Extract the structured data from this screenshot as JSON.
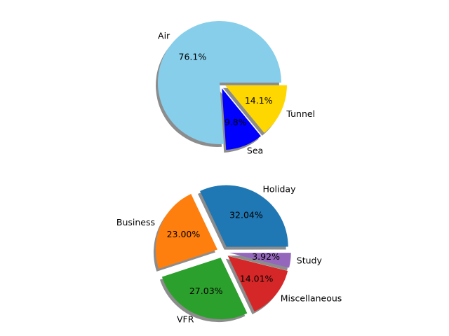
{
  "chart_data": [
    {
      "type": "pie",
      "exploded": [
        false,
        true,
        true
      ],
      "shadow": true,
      "slices": [
        {
          "label": "Air",
          "value": 76.1,
          "pct_label": "76.1%",
          "color": "#87ceeb"
        },
        {
          "label": "Sea",
          "value": 9.8,
          "pct_label": "9.8%",
          "color": "#0000ff"
        },
        {
          "label": "Tunnel",
          "value": 14.1,
          "pct_label": "14.1%",
          "color": "#ffd700"
        }
      ]
    },
    {
      "type": "pie",
      "exploded": [
        true,
        true,
        true,
        true,
        true
      ],
      "shadow": true,
      "slices": [
        {
          "label": "Holiday",
          "value": 32.04,
          "pct_label": "32.04%",
          "color": "#1f77b4"
        },
        {
          "label": "Business",
          "value": 23.0,
          "pct_label": "23.00%",
          "color": "#ff7f0e"
        },
        {
          "label": "VFR",
          "value": 27.03,
          "pct_label": "27.03%",
          "color": "#2ca02c"
        },
        {
          "label": "Miscellaneous",
          "value": 14.01,
          "pct_label": "14.01%",
          "color": "#d62728"
        },
        {
          "label": "Study",
          "value": 3.92,
          "pct_label": "3.92%",
          "color": "#9467bd"
        }
      ]
    }
  ]
}
